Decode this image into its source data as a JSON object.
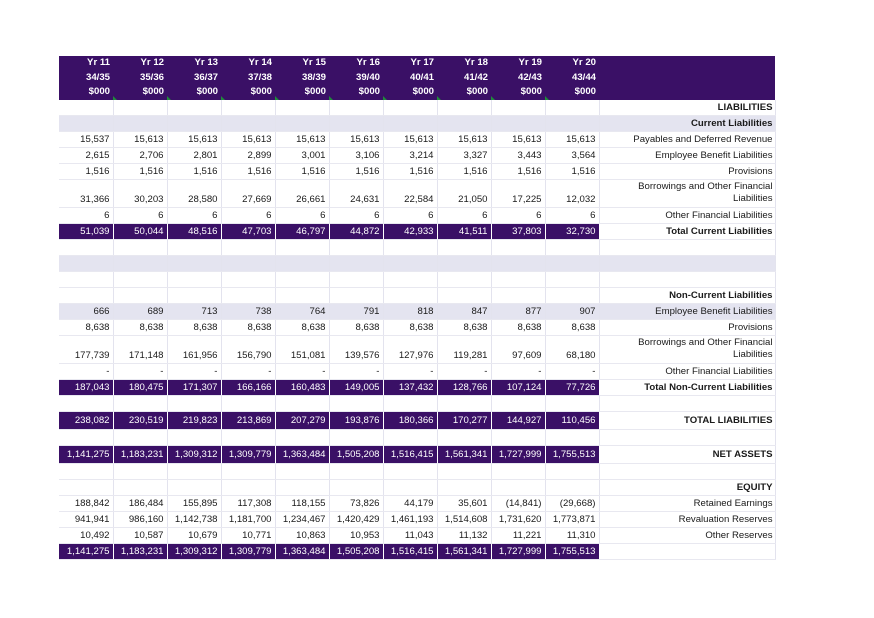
{
  "header": {
    "years": [
      {
        "yr": "Yr 11",
        "period": "34/35",
        "unit": "$000"
      },
      {
        "yr": "Yr 12",
        "period": "35/36",
        "unit": "$000"
      },
      {
        "yr": "Yr 13",
        "period": "36/37",
        "unit": "$000"
      },
      {
        "yr": "Yr 14",
        "period": "37/38",
        "unit": "$000"
      },
      {
        "yr": "Yr 15",
        "period": "38/39",
        "unit": "$000"
      },
      {
        "yr": "Yr 16",
        "period": "39/40",
        "unit": "$000"
      },
      {
        "yr": "Yr 17",
        "period": "40/41",
        "unit": "$000"
      },
      {
        "yr": "Yr 18",
        "period": "41/42",
        "unit": "$000"
      },
      {
        "yr": "Yr 19",
        "period": "42/43",
        "unit": "$000"
      },
      {
        "yr": "Yr 20",
        "period": "43/44",
        "unit": "$000"
      }
    ]
  },
  "rows": [
    {
      "type": "sec",
      "label": "LIABILITIES",
      "values": []
    },
    {
      "type": "sec band",
      "label": "Current Liabilities",
      "values": []
    },
    {
      "type": "data",
      "label": "Payables and Deferred Revenue",
      "values": [
        "15,537",
        "15,613",
        "15,613",
        "15,613",
        "15,613",
        "15,613",
        "15,613",
        "15,613",
        "15,613",
        "15,613"
      ]
    },
    {
      "type": "data",
      "label": "Employee Benefit Liabilities",
      "values": [
        "2,615",
        "2,706",
        "2,801",
        "2,899",
        "3,001",
        "3,106",
        "3,214",
        "3,327",
        "3,443",
        "3,564"
      ]
    },
    {
      "type": "data",
      "label": "Provisions",
      "values": [
        "1,516",
        "1,516",
        "1,516",
        "1,516",
        "1,516",
        "1,516",
        "1,516",
        "1,516",
        "1,516",
        "1,516"
      ]
    },
    {
      "type": "data tall",
      "label": "Borrowings and Other Financial Liabilities",
      "values": [
        "31,366",
        "30,203",
        "28,580",
        "27,669",
        "26,661",
        "24,631",
        "22,584",
        "21,050",
        "17,225",
        "12,032"
      ]
    },
    {
      "type": "data",
      "label": "Other Financial Liabilities",
      "values": [
        "6",
        "6",
        "6",
        "6",
        "6",
        "6",
        "6",
        "6",
        "6",
        "6"
      ]
    },
    {
      "type": "total",
      "label": "Total Current Liabilities",
      "values": [
        "51,039",
        "50,044",
        "48,516",
        "47,703",
        "46,797",
        "44,872",
        "42,933",
        "41,511",
        "37,803",
        "32,730"
      ]
    },
    {
      "type": "blank",
      "label": "",
      "values": []
    },
    {
      "type": "band",
      "label": "",
      "values": []
    },
    {
      "type": "blank",
      "label": "",
      "values": []
    },
    {
      "type": "sec",
      "label": "Non-Current Liabilities",
      "values": []
    },
    {
      "type": "data band",
      "label": "Employee Benefit Liabilities",
      "values": [
        "666",
        "689",
        "713",
        "738",
        "764",
        "791",
        "818",
        "847",
        "877",
        "907"
      ]
    },
    {
      "type": "data",
      "label": "Provisions",
      "values": [
        "8,638",
        "8,638",
        "8,638",
        "8,638",
        "8,638",
        "8,638",
        "8,638",
        "8,638",
        "8,638",
        "8,638"
      ]
    },
    {
      "type": "data tall",
      "label": "Borrowings and Other Financial Liabilities",
      "values": [
        "177,739",
        "171,148",
        "161,956",
        "156,790",
        "151,081",
        "139,576",
        "127,976",
        "119,281",
        "97,609",
        "68,180"
      ]
    },
    {
      "type": "data",
      "label": "Other Financial Liabilities",
      "values": [
        "-",
        "-",
        "-",
        "-",
        "-",
        "-",
        "-",
        "-",
        "-",
        "-"
      ]
    },
    {
      "type": "total",
      "label": "Total Non-Current Liabilities",
      "values": [
        "187,043",
        "180,475",
        "171,307",
        "166,166",
        "160,483",
        "149,005",
        "137,432",
        "128,766",
        "107,124",
        "77,726"
      ]
    },
    {
      "type": "blank",
      "label": "",
      "values": []
    },
    {
      "type": "total big",
      "label": "TOTAL LIABILITIES",
      "values": [
        "238,082",
        "230,519",
        "219,823",
        "213,869",
        "207,279",
        "193,876",
        "180,366",
        "170,277",
        "144,927",
        "110,456"
      ]
    },
    {
      "type": "blank",
      "label": "",
      "values": []
    },
    {
      "type": "total big",
      "label": "NET ASSETS",
      "values": [
        "1,141,275",
        "1,183,231",
        "1,309,312",
        "1,309,779",
        "1,363,484",
        "1,505,208",
        "1,516,415",
        "1,561,341",
        "1,727,999",
        "1,755,513"
      ]
    },
    {
      "type": "blank",
      "label": "",
      "values": []
    },
    {
      "type": "sec",
      "label": "EQUITY",
      "values": []
    },
    {
      "type": "data",
      "label": "Retained Earnings",
      "values": [
        "188,842",
        "186,484",
        "155,895",
        "117,308",
        "118,155",
        "73,826",
        "44,179",
        "35,601",
        "(14,841)",
        "(29,668)"
      ]
    },
    {
      "type": "data",
      "label": "Revaluation Reserves",
      "values": [
        "941,941",
        "986,160",
        "1,142,738",
        "1,181,700",
        "1,234,467",
        "1,420,429",
        "1,461,193",
        "1,514,608",
        "1,731,620",
        "1,773,871"
      ]
    },
    {
      "type": "data",
      "label": "Other Reserves",
      "values": [
        "10,492",
        "10,587",
        "10,679",
        "10,771",
        "10,863",
        "10,953",
        "11,043",
        "11,132",
        "11,221",
        "11,310"
      ]
    },
    {
      "type": "total",
      "label": "",
      "values": [
        "1,141,275",
        "1,183,231",
        "1,309,312",
        "1,309,779",
        "1,363,484",
        "1,505,208",
        "1,516,415",
        "1,561,341",
        "1,727,999",
        "1,755,513"
      ]
    }
  ]
}
